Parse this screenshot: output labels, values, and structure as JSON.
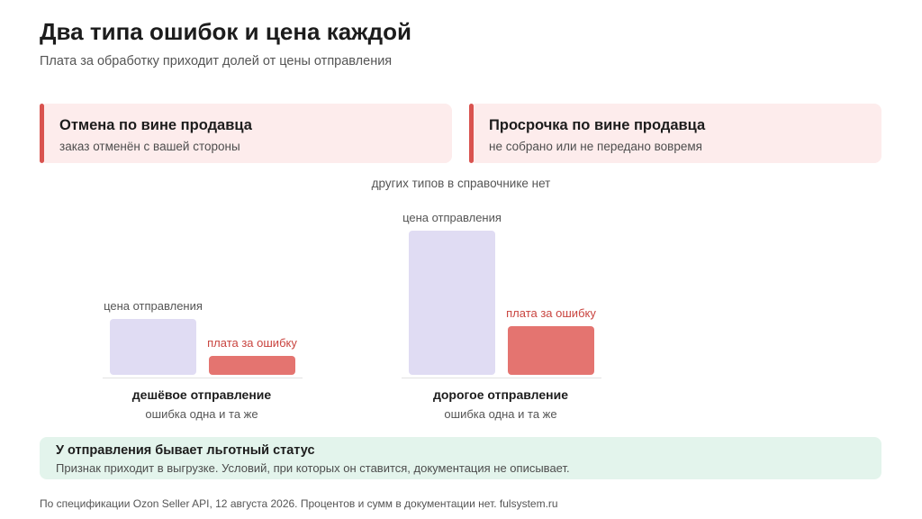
{
  "header": {
    "title": "Два типа ошибок и цена каждой",
    "subtitle": "Плата за обработку приходит долей от цены отправления"
  },
  "cards": [
    {
      "title": "Отмена по вине продавца",
      "description": "заказ отменён с вашей стороны",
      "accent": "#d9534f"
    },
    {
      "title": "Просрочка по вине продавца",
      "description": "не собрано или не передано вовремя",
      "accent": "#d9534f"
    }
  ],
  "center_note": "других типов в справочнике нет",
  "comparison": {
    "bar_labels": {
      "price": "цена отправления",
      "fee": "плата за ошибку"
    },
    "groups": [
      {
        "title": "дешёвое отправление",
        "subtitle": "ошибка одна и та же",
        "price_level": 0.39,
        "fee_level": 0.13
      },
      {
        "title": "дорогое отправление",
        "subtitle": "ошибка одна и та же",
        "price_level": 1.0,
        "fee_level": 0.34
      }
    ],
    "colors": {
      "price": "#e0dcf3",
      "fee": "#e47470"
    }
  },
  "status_box": {
    "title": "У отправления бывает льготный статус",
    "description": "Признак приходит в выгрузке. Условий, при которых он ставится, документация не описывает.",
    "background": "#e3f4ec"
  },
  "footer": "По спецификации Ozon Seller API, 12 августа 2026. Процентов и сумм в документации нет. fulsystem.ru"
}
